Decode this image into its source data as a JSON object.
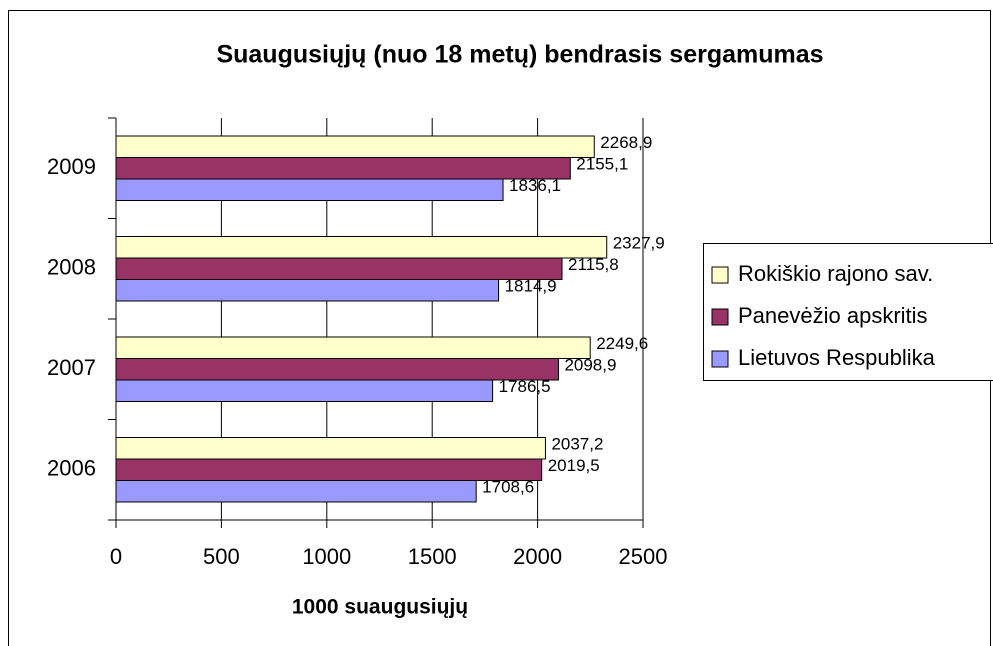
{
  "chart_data": {
    "type": "hbar",
    "title": "Suaugusiųjų (nuo 18 metų) bendrasis sergamumas",
    "x_label": "1000 suaugusiųjų",
    "categories": [
      "2006",
      "2007",
      "2008",
      "2009"
    ],
    "series": [
      {
        "name": "Rokiškio rajono sav.",
        "color": "#ffffcc",
        "values": [
          2037.2,
          2249.6,
          2327.9,
          2268.9
        ],
        "value_labels": [
          "2037,2",
          "2249,6",
          "2327,9",
          "2268,9"
        ]
      },
      {
        "name": "Panevėžio apskritis",
        "color": "#993366",
        "values": [
          2019.5,
          2098.9,
          2115.8,
          2155.1
        ],
        "value_labels": [
          "2019,5",
          "2098,9",
          "2115,8",
          "2155,1"
        ]
      },
      {
        "name": "Lietuvos Respublika",
        "color": "#9999ff",
        "values": [
          1708.6,
          1786.5,
          1814.9,
          1836.1
        ],
        "value_labels": [
          "1708,6",
          "1786,5",
          "1814,9",
          "1836,1"
        ]
      }
    ],
    "xlim": [
      0,
      2500
    ],
    "xticks": [
      0,
      500,
      1000,
      1500,
      2000,
      2500
    ],
    "grid": true,
    "legend": "right"
  }
}
